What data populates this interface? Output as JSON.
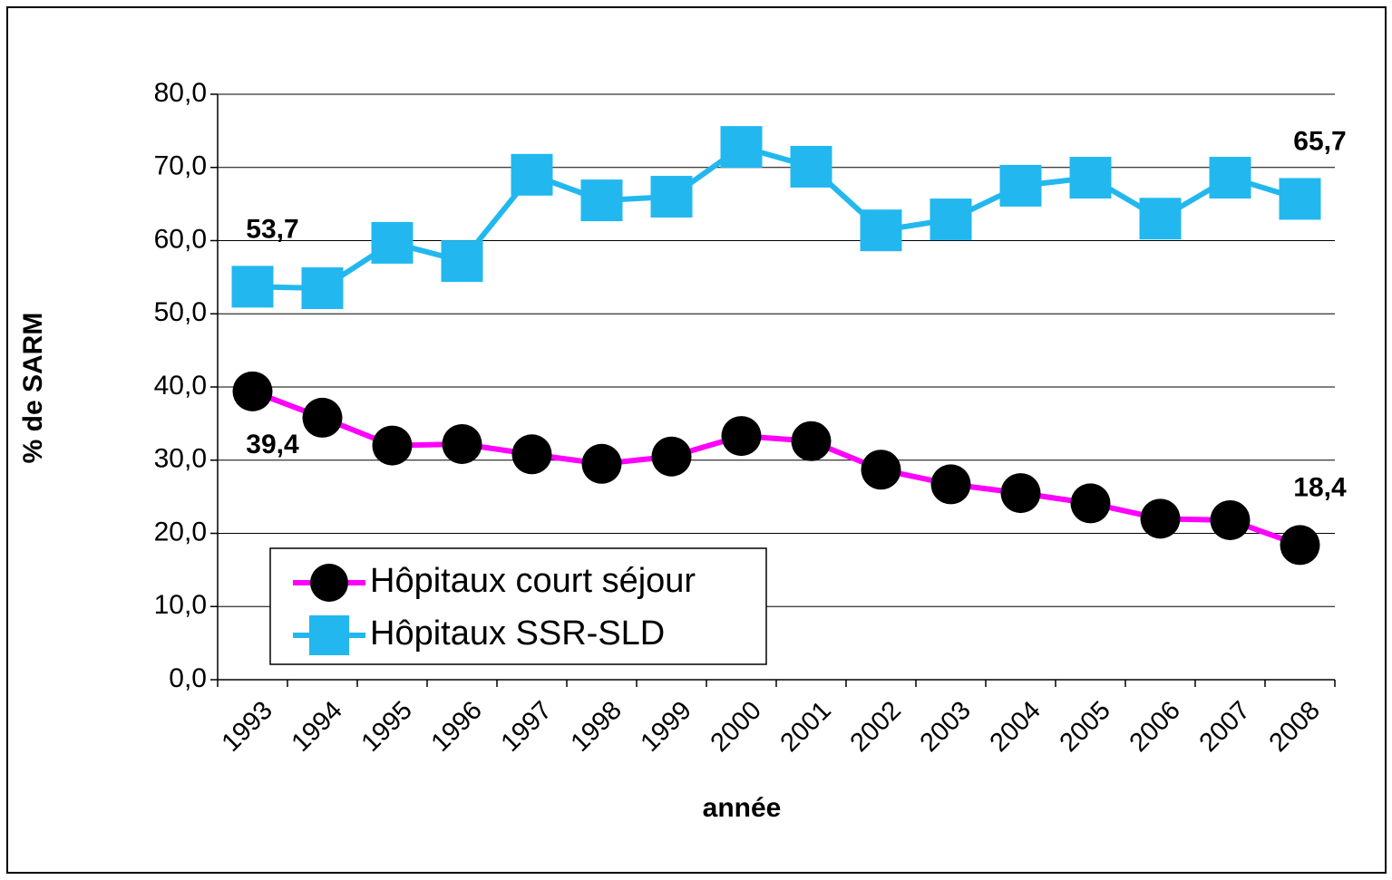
{
  "chart_data": {
    "type": "line",
    "x_label": "année",
    "y_label": "% de SARM",
    "categories": [
      "1993",
      "1994",
      "1995",
      "1996",
      "1997",
      "1998",
      "1999",
      "2000",
      "2001",
      "2002",
      "2003",
      "2004",
      "2005",
      "2006",
      "2007",
      "2008"
    ],
    "series": [
      {
        "name": "Hôpitaux court séjour",
        "color": "#ff00ff",
        "marker": "circle",
        "marker_color": "#000000",
        "values": [
          39.4,
          35.8,
          32.0,
          32.2,
          30.8,
          29.5,
          30.5,
          33.3,
          32.6,
          28.7,
          26.7,
          25.5,
          24.1,
          22.0,
          21.8,
          18.4
        ],
        "value_labels": [
          "39,4",
          null,
          null,
          null,
          null,
          null,
          null,
          null,
          null,
          null,
          null,
          null,
          null,
          null,
          null,
          "18,4"
        ]
      },
      {
        "name": "Hôpitaux SSR-SLD",
        "color": "#22b8ef",
        "marker": "square",
        "marker_color": "#22b8ef",
        "values": [
          53.7,
          53.5,
          59.7,
          57.2,
          69.0,
          65.5,
          66.0,
          72.8,
          70.1,
          61.4,
          62.9,
          67.5,
          68.6,
          63.0,
          68.6,
          65.7
        ],
        "value_labels": [
          "53,7",
          null,
          null,
          null,
          null,
          null,
          null,
          null,
          null,
          null,
          null,
          null,
          null,
          null,
          null,
          "65,7"
        ]
      }
    ],
    "ylim": [
      0,
      80
    ],
    "yticks": [
      {
        "value": 0,
        "label": "0,0"
      },
      {
        "value": 10,
        "label": "10,0"
      },
      {
        "value": 20,
        "label": "20,0"
      },
      {
        "value": 30,
        "label": "30,0"
      },
      {
        "value": 40,
        "label": "40,0"
      },
      {
        "value": 50,
        "label": "50,0"
      },
      {
        "value": 60,
        "label": "60,0"
      },
      {
        "value": 70,
        "label": "70,0"
      },
      {
        "value": 80,
        "label": "80,0"
      }
    ],
    "grid": true,
    "legend": "lower left"
  }
}
